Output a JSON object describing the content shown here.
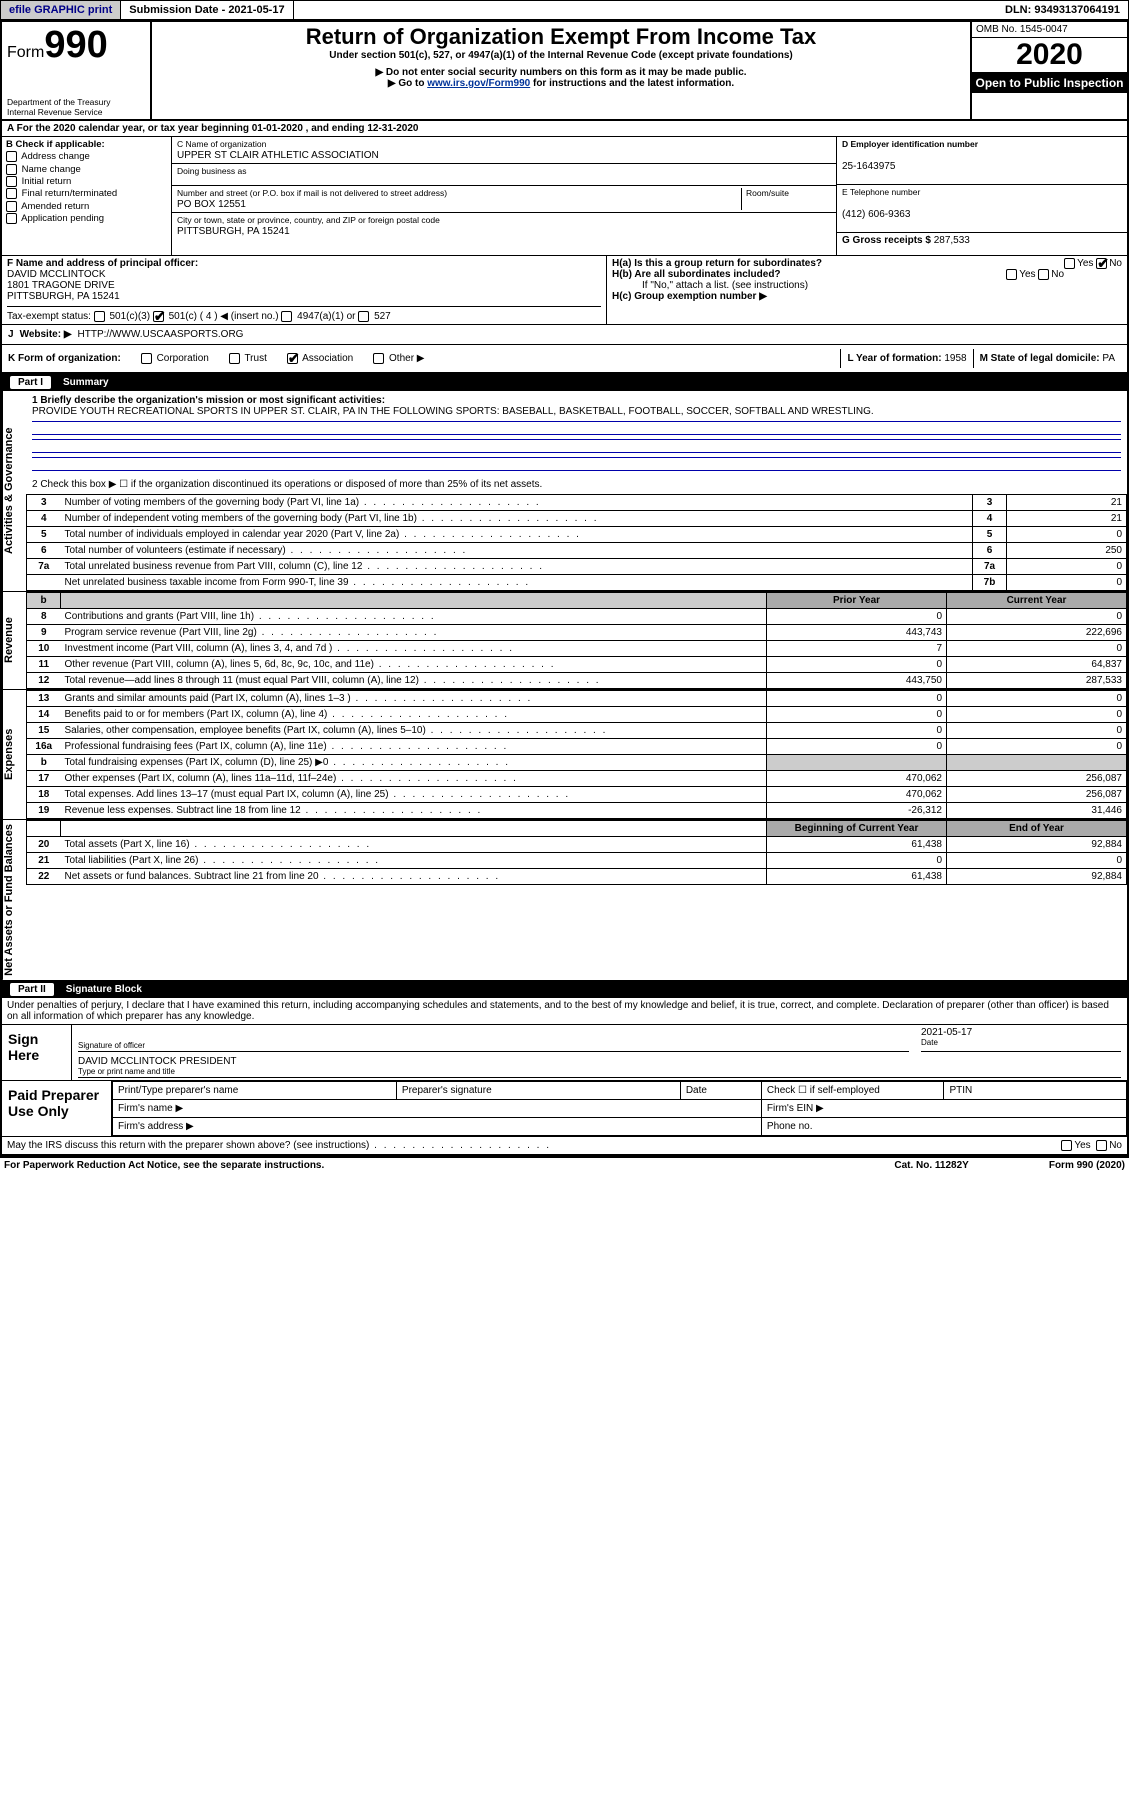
{
  "top": {
    "efile": "efile GRAPHIC print",
    "submission_label": "Submission Date - 2021-05-17",
    "dln": "DLN: 93493137064191"
  },
  "header": {
    "form_word": "Form",
    "form_num": "990",
    "title": "Return of Organization Exempt From Income Tax",
    "sub1": "Under section 501(c), 527, or 4947(a)(1) of the Internal Revenue Code (except private foundations)",
    "sub2": "▶ Do not enter social security numbers on this form as it may be made public.",
    "sub3_pre": "▶ Go to ",
    "sub3_link": "www.irs.gov/Form990",
    "sub3_post": " for instructions and the latest information.",
    "dept": "Department of the Treasury",
    "irs": "Internal Revenue Service",
    "omb": "OMB No. 1545-0047",
    "year": "2020",
    "open": "Open to Public Inspection"
  },
  "row_a": "A For the 2020 calendar year, or tax year beginning 01-01-2020    , and ending 12-31-2020",
  "box_b": {
    "label": "B Check if applicable:",
    "items": [
      "Address change",
      "Name change",
      "Initial return",
      "Final return/terminated",
      "Amended return",
      "Application pending"
    ]
  },
  "box_c": {
    "name_lbl": "C Name of organization",
    "name": "UPPER ST CLAIR ATHLETIC ASSOCIATION",
    "dba_lbl": "Doing business as",
    "addr_lbl": "Number and street (or P.O. box if mail is not delivered to street address)",
    "room_lbl": "Room/suite",
    "addr": "PO BOX 12551",
    "city_lbl": "City or town, state or province, country, and ZIP or foreign postal code",
    "city": "PITTSBURGH, PA  15241"
  },
  "box_d": {
    "lbl": "D Employer identification number",
    "val": "25-1643975"
  },
  "box_e": {
    "lbl": "E Telephone number",
    "val": "(412) 606-9363"
  },
  "box_g": {
    "lbl": "G Gross receipts $",
    "val": "287,533"
  },
  "box_f": {
    "lbl": "F  Name and address of principal officer:",
    "name": "DAVID MCCLINTOCK",
    "addr1": "1801 TRAGONE DRIVE",
    "addr2": "PITTSBURGH, PA  15241"
  },
  "box_h": {
    "ha": "H(a)  Is this a group return for subordinates?",
    "hb": "H(b)  Are all subordinates included?",
    "hb_note": "If \"No,\" attach a list. (see instructions)",
    "hc": "H(c)  Group exemption number ▶",
    "yes": "Yes",
    "no": "No"
  },
  "line_i": {
    "lbl": "Tax-exempt status:",
    "opts": [
      "501(c)(3)",
      "501(c) ( 4 ) ◀ (insert no.)",
      "4947(a)(1) or",
      "527"
    ]
  },
  "line_j": {
    "lbl": "J",
    "text": "Website: ▶",
    "val": "HTTP://WWW.USCAASPORTS.ORG"
  },
  "line_k": {
    "lbl": "K Form of organization:",
    "opts": [
      "Corporation",
      "Trust",
      "Association",
      "Other ▶"
    ]
  },
  "box_l": {
    "lbl": "L Year of formation:",
    "val": "1958"
  },
  "box_m": {
    "lbl": "M State of legal domicile:",
    "val": "PA"
  },
  "part1": {
    "bar_tag": "Part I",
    "bar_title": "Summary",
    "side_ag": "Activities & Governance",
    "side_rev": "Revenue",
    "side_exp": "Expenses",
    "side_net": "Net Assets or Fund Balances",
    "l1": "1  Briefly describe the organization's mission or most significant activities:",
    "mission": "PROVIDE YOUTH RECREATIONAL SPORTS IN UPPER ST. CLAIR, PA IN THE FOLLOWING SPORTS: BASEBALL, BASKETBALL, FOOTBALL, SOCCER, SOFTBALL AND WRESTLING.",
    "l2": "2  Check this box ▶ ☐  if the organization discontinued its operations or disposed of more than 25% of its net assets.",
    "rows_ag": [
      {
        "n": "3",
        "d": "Number of voting members of the governing body (Part VI, line 1a)",
        "b": "3",
        "v": "21"
      },
      {
        "n": "4",
        "d": "Number of independent voting members of the governing body (Part VI, line 1b)",
        "b": "4",
        "v": "21"
      },
      {
        "n": "5",
        "d": "Total number of individuals employed in calendar year 2020 (Part V, line 2a)",
        "b": "5",
        "v": "0"
      },
      {
        "n": "6",
        "d": "Total number of volunteers (estimate if necessary)",
        "b": "6",
        "v": "250"
      },
      {
        "n": "7a",
        "d": "Total unrelated business revenue from Part VIII, column (C), line 12",
        "b": "7a",
        "v": "0"
      },
      {
        "n": "",
        "d": "Net unrelated business taxable income from Form 990-T, line 39",
        "b": "7b",
        "v": "0"
      }
    ],
    "hdr_b": "b",
    "prior": "Prior Year",
    "current": "Current Year",
    "rows_rev": [
      {
        "n": "8",
        "d": "Contributions and grants (Part VIII, line 1h)",
        "p": "0",
        "c": "0"
      },
      {
        "n": "9",
        "d": "Program service revenue (Part VIII, line 2g)",
        "p": "443,743",
        "c": "222,696"
      },
      {
        "n": "10",
        "d": "Investment income (Part VIII, column (A), lines 3, 4, and 7d )",
        "p": "7",
        "c": "0"
      },
      {
        "n": "11",
        "d": "Other revenue (Part VIII, column (A), lines 5, 6d, 8c, 9c, 10c, and 11e)",
        "p": "0",
        "c": "64,837"
      },
      {
        "n": "12",
        "d": "Total revenue—add lines 8 through 11 (must equal Part VIII, column (A), line 12)",
        "p": "443,750",
        "c": "287,533"
      }
    ],
    "rows_exp": [
      {
        "n": "13",
        "d": "Grants and similar amounts paid (Part IX, column (A), lines 1–3 )",
        "p": "0",
        "c": "0"
      },
      {
        "n": "14",
        "d": "Benefits paid to or for members (Part IX, column (A), line 4)",
        "p": "0",
        "c": "0"
      },
      {
        "n": "15",
        "d": "Salaries, other compensation, employee benefits (Part IX, column (A), lines 5–10)",
        "p": "0",
        "c": "0"
      },
      {
        "n": "16a",
        "d": "Professional fundraising fees (Part IX, column (A), line 11e)",
        "p": "0",
        "c": "0"
      },
      {
        "n": "b",
        "d": "Total fundraising expenses (Part IX, column (D), line 25) ▶0",
        "p": "",
        "c": "",
        "grey": true
      },
      {
        "n": "17",
        "d": "Other expenses (Part IX, column (A), lines 11a–11d, 11f–24e)",
        "p": "470,062",
        "c": "256,087"
      },
      {
        "n": "18",
        "d": "Total expenses. Add lines 13–17 (must equal Part IX, column (A), line 25)",
        "p": "470,062",
        "c": "256,087"
      },
      {
        "n": "19",
        "d": "Revenue less expenses. Subtract line 18 from line 12",
        "p": "-26,312",
        "c": "31,446"
      }
    ],
    "begin": "Beginning of Current Year",
    "end": "End of Year",
    "rows_net": [
      {
        "n": "20",
        "d": "Total assets (Part X, line 16)",
        "p": "61,438",
        "c": "92,884"
      },
      {
        "n": "21",
        "d": "Total liabilities (Part X, line 26)",
        "p": "0",
        "c": "0"
      },
      {
        "n": "22",
        "d": "Net assets or fund balances. Subtract line 21 from line 20",
        "p": "61,438",
        "c": "92,884"
      }
    ]
  },
  "part2": {
    "bar_tag": "Part II",
    "bar_title": "Signature Block",
    "perjury": "Under penalties of perjury, I declare that I have examined this return, including accompanying schedules and statements, and to the best of my knowledge and belief, it is true, correct, and complete. Declaration of preparer (other than officer) is based on all information of which preparer has any knowledge.",
    "sign_here": "Sign Here",
    "sig_officer_cap": "Signature of officer",
    "date": "2021-05-17",
    "date_cap": "Date",
    "officer": "DAVID MCCLINTOCK PRESIDENT",
    "officer_cap": "Type or print name and title",
    "paid": "Paid Preparer Use Only",
    "pp_name": "Print/Type preparer's name",
    "pp_sig": "Preparer's signature",
    "pp_date": "Date",
    "pp_self": "Check ☐ if self-employed",
    "pp_ptin": "PTIN",
    "firm_name": "Firm's name   ▶",
    "firm_ein": "Firm's EIN ▶",
    "firm_addr": "Firm's address ▶",
    "phone": "Phone no."
  },
  "bottom": {
    "discuss": "May the IRS discuss this return with the preparer shown above? (see instructions)",
    "yes": "Yes",
    "no": "No",
    "paperwork": "For Paperwork Reduction Act Notice, see the separate instructions.",
    "cat": "Cat. No. 11282Y",
    "form": "Form 990 (2020)"
  },
  "style": {
    "link_color": "#003399",
    "grey": "#cccccc",
    "header_grey": "#aaaaaa",
    "black": "#000000",
    "white": "#ffffff"
  }
}
